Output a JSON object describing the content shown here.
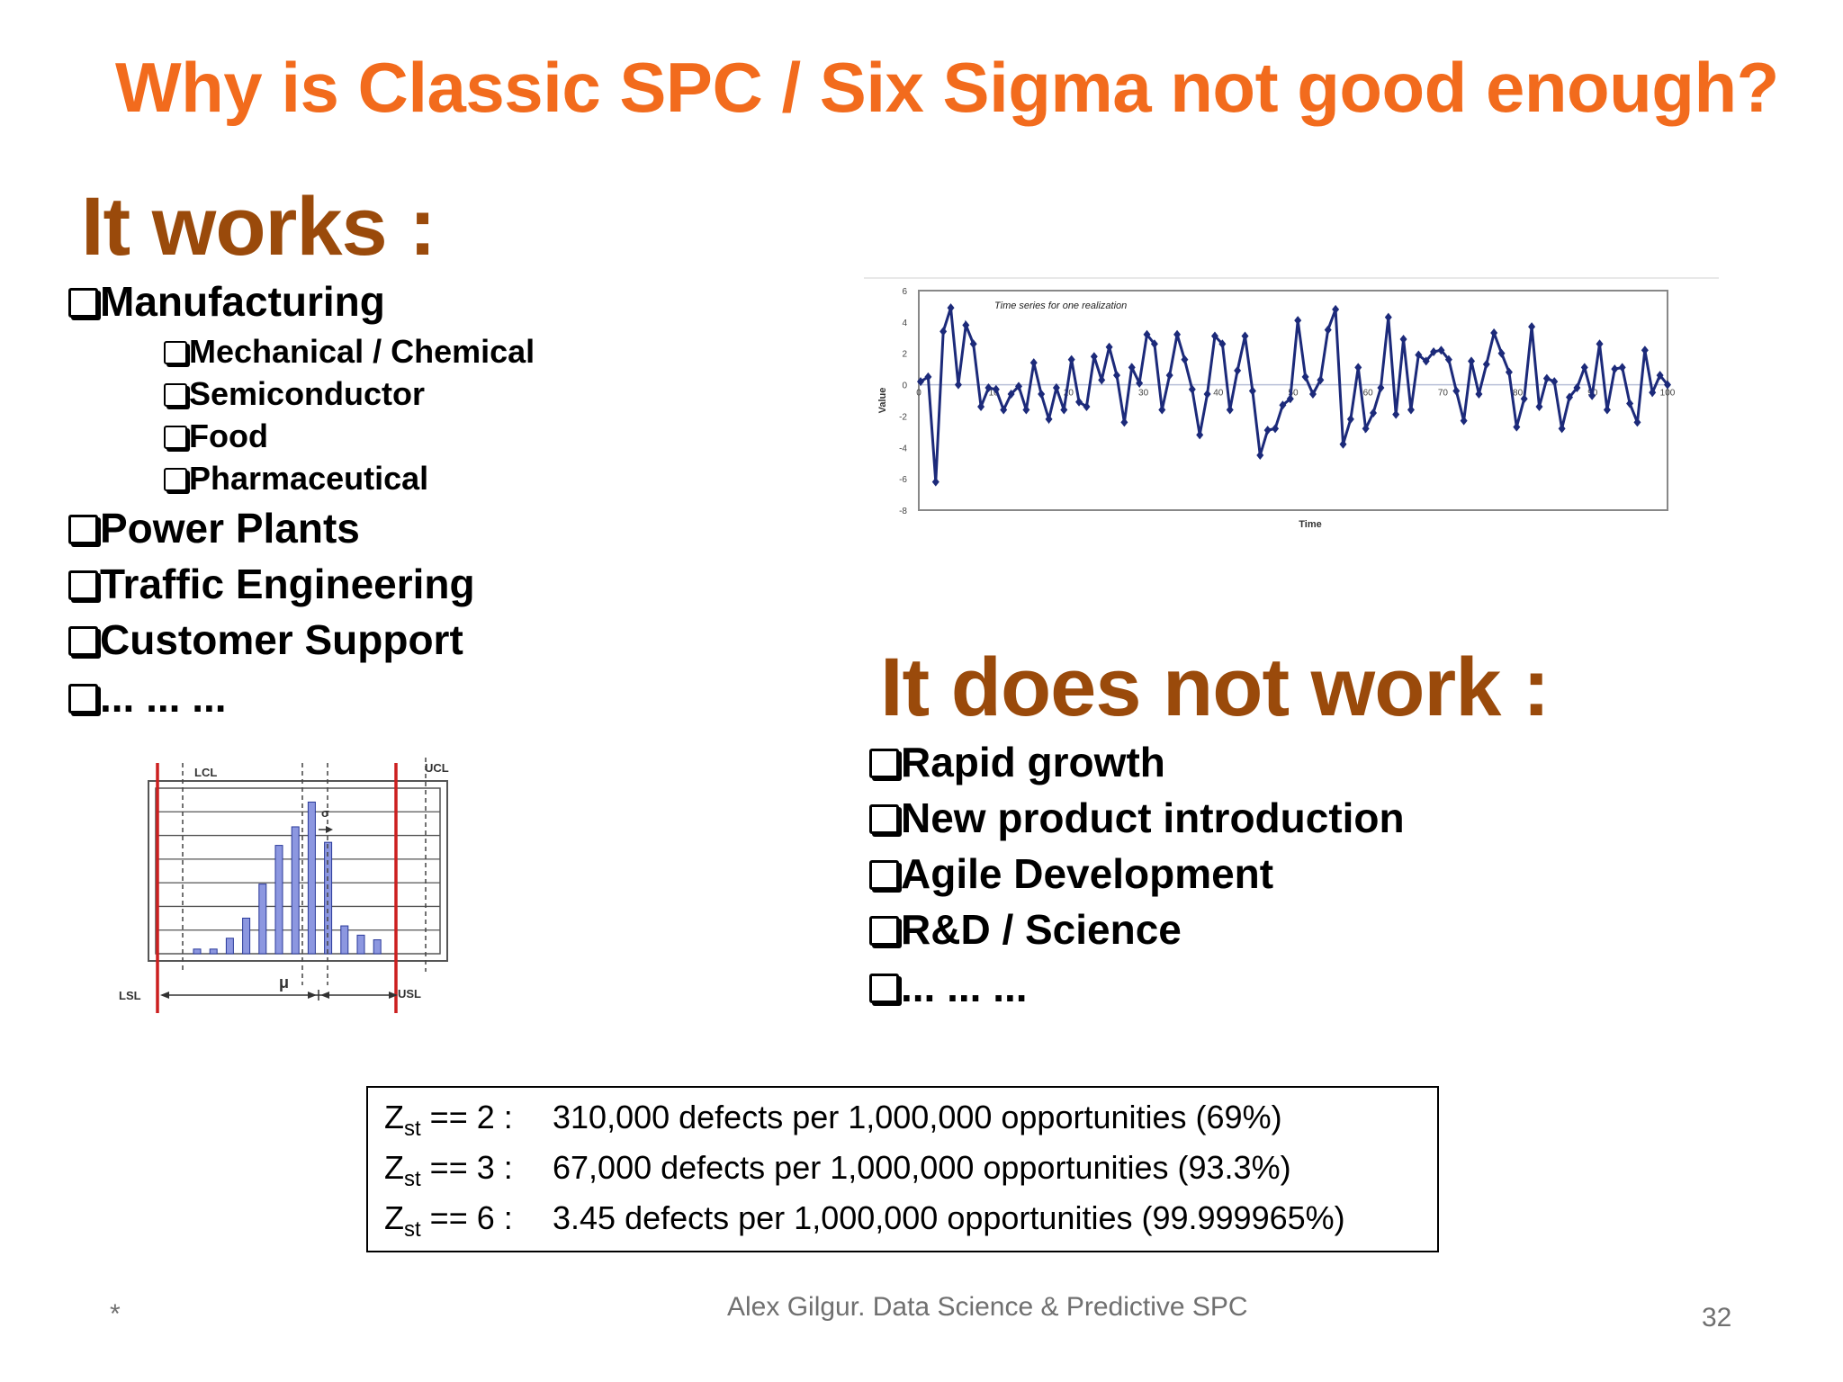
{
  "slide": {
    "title": "Why is Classic SPC / Six Sigma not good enough?",
    "works_heading": "It works :",
    "works_items": [
      {
        "label": "Manufacturing",
        "level": 1
      },
      {
        "label": "Mechanical / Chemical",
        "level": 2
      },
      {
        "label": "Semiconductor",
        "level": 2
      },
      {
        "label": "Food",
        "level": 2
      },
      {
        "label": "Pharmaceutical",
        "level": 2
      },
      {
        "label": "Power Plants",
        "level": 1
      },
      {
        "label": "Traffic Engineering",
        "level": 1
      },
      {
        "label": "Customer Support",
        "level": 1
      },
      {
        "label": "... ... ...",
        "level": 1
      }
    ],
    "not_work_heading": "It does not work :",
    "not_work_items": [
      "Rapid growth",
      "New product introduction",
      "Agile Development",
      "R&D / Science",
      "... ... ..."
    ],
    "z_table": {
      "z_symbol": "Z",
      "z_subscript": "st",
      "rows": [
        {
          "op": " == 2 :",
          "text": "310,000 defects per 1,000,000 opportunities (69%)"
        },
        {
          "op": " == 3 :",
          "text": "67,000 defects per 1,000,000 opportunities (93.3%)"
        },
        {
          "op": " == 6 :",
          "text": "3.45 defects per 1,000,000 opportunities (99.999965%)"
        }
      ]
    },
    "footer": "Alex Gilgur.  Data Science & Predictive SPC",
    "page_number": "32",
    "footer_mark": "*",
    "colors": {
      "title": "#f26b1d",
      "heading": "#9a4a0b",
      "series": "#1c2a7a",
      "limit_lines": "#cc1f1f",
      "bars": "#8c97e0"
    }
  },
  "chart_data": [
    {
      "type": "line",
      "title": "Time series for one realization",
      "xlabel": "Time",
      "ylabel": "Value",
      "xlim": [
        0,
        100
      ],
      "ylim": [
        -8,
        6
      ],
      "x_ticks": [
        "0",
        "10",
        "20",
        "30",
        "40",
        "50",
        "60",
        "70",
        "80",
        "90",
        "100"
      ],
      "y_ticks": [
        "6",
        "4",
        "2",
        "0",
        "-2",
        "-4",
        "-6",
        "-8"
      ],
      "series": [
        {
          "name": "",
          "values": [
            0.2,
            0.5,
            -6.2,
            3.4,
            4.9,
            0,
            3.8,
            2.6,
            -1.4,
            -0.2,
            -0.3,
            -1.6,
            -0.6,
            -0.1,
            -1.6,
            1.4,
            -0.6,
            -2.2,
            -0.2,
            -1.6,
            1.6,
            -1.1,
            -1.4,
            1.8,
            0.3,
            2.4,
            0.6,
            -2.4,
            1.1,
            0.1,
            3.2,
            2.6,
            -1.6,
            0.6,
            3.2,
            1.6,
            -0.3,
            -3.2,
            -0.6,
            3.1,
            2.6,
            -1.6,
            0.9,
            3.1,
            -0.4,
            -4.5,
            -2.9,
            -2.8,
            -1.3,
            -0.9,
            4.1,
            0.5,
            -0.6,
            0.3,
            3.5,
            4.8,
            -3.8,
            -2.2,
            1.1,
            -2.8,
            -1.8,
            -0.2,
            4.3,
            -1.9,
            2.9,
            -1.6,
            1.9,
            1.5,
            2.1,
            2.2,
            1.6,
            -0.4,
            -2.3,
            1.5,
            -0.6,
            1.3,
            3.3,
            2,
            0.8,
            -2.7,
            -0.9,
            3.7,
            -1.4,
            0.4,
            0.2,
            -2.8,
            -0.8,
            -0.2,
            1.1,
            -0.7,
            2.6,
            -1.6,
            1,
            1.1,
            -1.2,
            -2.4,
            2.2,
            -0.5,
            0.6,
            0
          ]
        }
      ]
    },
    {
      "type": "bar",
      "title": "",
      "values": [
        0.3,
        0.3,
        1,
        2.3,
        4.5,
        7,
        8.2,
        9.8,
        7.2,
        1.8,
        1.2,
        0.9
      ],
      "annotations": [
        "LCL",
        "UCL",
        "LSL",
        "USL",
        "μ",
        "σ"
      ],
      "ylim": [
        0,
        10
      ]
    }
  ]
}
